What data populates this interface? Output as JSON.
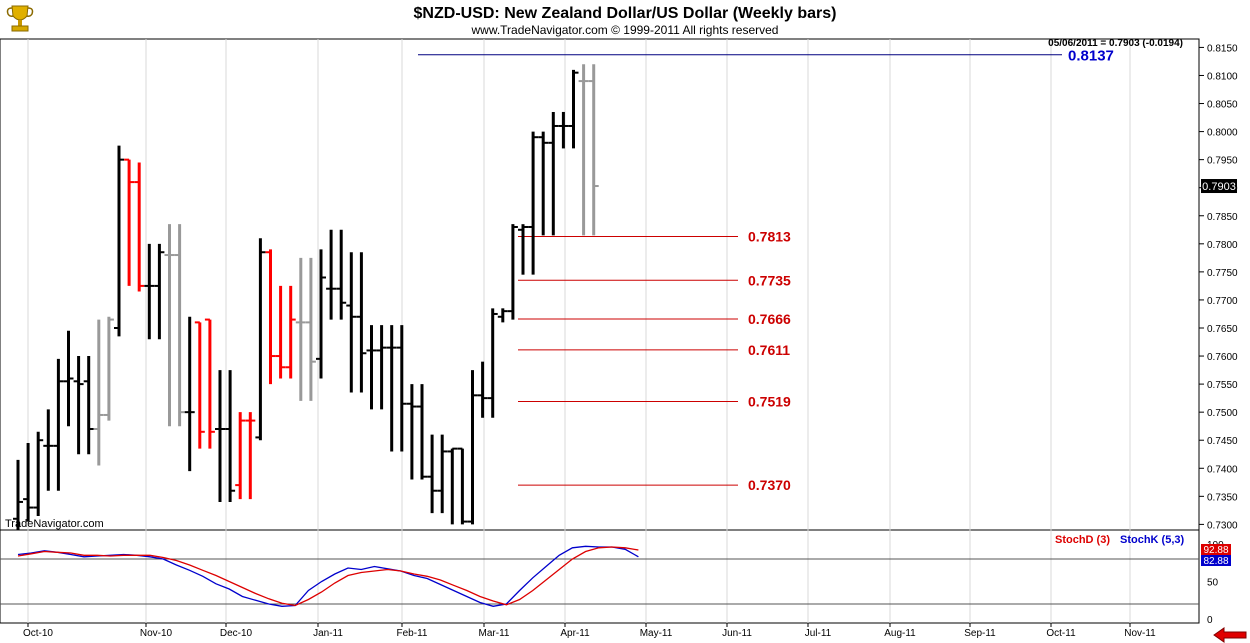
{
  "header": {
    "title": "$NZD-USD:  New Zealand Dollar/US Dollar  (Weekly bars)",
    "copyright": "www.TradeNavigator.com © 1999-2011 All rights reserved",
    "watermark": "TradeNavigator.com",
    "logo_icon": "trophy-icon",
    "nav_icon": "arrow-left-icon"
  },
  "colors": {
    "up_bar": "#000000",
    "down_bar": "#ff0000",
    "neutral_bar": "#999999",
    "fib_line": "#cc0000",
    "fib_label": "#cc0000",
    "target_line": "#000080",
    "target_label": "#0000cc",
    "stoch_d": "#dd0000",
    "stoch_k": "#0000cc",
    "grid": "#d8d8d8"
  },
  "chart_data": [
    {
      "type": "ohlc",
      "ylim": [
        0.729,
        0.8165
      ],
      "yticks": [
        "0.8150",
        "0.8100",
        "0.8050",
        "0.8000",
        "0.7950",
        "0.7900",
        "0.7850",
        "0.7800",
        "0.7750",
        "0.7700",
        "0.7650",
        "0.7600",
        "0.7550",
        "0.7500",
        "0.7450",
        "0.7400",
        "0.7350",
        "0.7300"
      ],
      "last_value": "0.7903",
      "last_label": "05/06/2011 = 0.7903 (-0.0194)",
      "target": {
        "label": "0.8137",
        "value": 0.8137
      },
      "fib_levels": [
        {
          "label": "0.7813",
          "value": 0.7813
        },
        {
          "label": "0.7735",
          "value": 0.7735
        },
        {
          "label": "0.7666",
          "value": 0.7666
        },
        {
          "label": "0.7611",
          "value": 0.7611
        },
        {
          "label": "0.7519",
          "value": 0.7519
        },
        {
          "label": "0.7370",
          "value": 0.737
        }
      ],
      "x_labels": [
        "Oct-10",
        "Nov-10",
        "Dec-10",
        "Jan-11",
        "Feb-11",
        "Mar-11",
        "Apr-11",
        "May-11",
        "Jun-11",
        "Jul-11",
        "Aug-11",
        "Sep-11",
        "Oct-11",
        "Nov-11"
      ],
      "bars": [
        {
          "w": 0,
          "o": 0.731,
          "h": 0.7415,
          "l": 0.729,
          "c": 0.734,
          "k": "up"
        },
        {
          "w": 1,
          "o": 0.7345,
          "h": 0.7445,
          "l": 0.7305,
          "c": 0.733,
          "k": "up"
        },
        {
          "w": 2,
          "o": 0.733,
          "h": 0.7465,
          "l": 0.7315,
          "c": 0.745,
          "k": "up"
        },
        {
          "w": 3,
          "o": 0.744,
          "h": 0.7505,
          "l": 0.736,
          "c": 0.744,
          "k": "up"
        },
        {
          "w": 4,
          "o": 0.744,
          "h": 0.7595,
          "l": 0.736,
          "c": 0.7555,
          "k": "up"
        },
        {
          "w": 5,
          "o": 0.7555,
          "h": 0.7645,
          "l": 0.7475,
          "c": 0.756,
          "k": "up"
        },
        {
          "w": 6,
          "o": 0.7555,
          "h": 0.76,
          "l": 0.7425,
          "c": 0.755,
          "k": "up"
        },
        {
          "w": 7,
          "o": 0.7555,
          "h": 0.76,
          "l": 0.7425,
          "c": 0.747,
          "k": "up"
        },
        {
          "w": 8,
          "o": 0.747,
          "h": 0.7665,
          "l": 0.7405,
          "c": 0.7495,
          "k": "neutral"
        },
        {
          "w": 9,
          "o": 0.7495,
          "h": 0.767,
          "l": 0.7485,
          "c": 0.7665,
          "k": "neutral"
        },
        {
          "w": 10,
          "o": 0.765,
          "h": 0.7975,
          "l": 0.7635,
          "c": 0.795,
          "k": "up"
        },
        {
          "w": 11,
          "o": 0.795,
          "h": 0.795,
          "l": 0.7725,
          "c": 0.791,
          "k": "down"
        },
        {
          "w": 12,
          "o": 0.791,
          "h": 0.7945,
          "l": 0.7715,
          "c": 0.7725,
          "k": "down"
        },
        {
          "w": 13,
          "o": 0.7725,
          "h": 0.78,
          "l": 0.763,
          "c": 0.7725,
          "k": "up"
        },
        {
          "w": 14,
          "o": 0.7725,
          "h": 0.78,
          "l": 0.763,
          "c": 0.7785,
          "k": "up"
        },
        {
          "w": 15,
          "o": 0.778,
          "h": 0.7835,
          "l": 0.7475,
          "c": 0.778,
          "k": "neutral"
        },
        {
          "w": 16,
          "o": 0.778,
          "h": 0.7835,
          "l": 0.7475,
          "c": 0.75,
          "k": "neutral"
        },
        {
          "w": 17,
          "o": 0.75,
          "h": 0.767,
          "l": 0.7395,
          "c": 0.75,
          "k": "up"
        },
        {
          "w": 18,
          "o": 0.766,
          "h": 0.766,
          "l": 0.7435,
          "c": 0.7465,
          "k": "down"
        },
        {
          "w": 19,
          "o": 0.7665,
          "h": 0.7665,
          "l": 0.7435,
          "c": 0.7465,
          "k": "down"
        },
        {
          "w": 20,
          "o": 0.747,
          "h": 0.7575,
          "l": 0.734,
          "c": 0.747,
          "k": "up"
        },
        {
          "w": 21,
          "o": 0.747,
          "h": 0.7575,
          "l": 0.734,
          "c": 0.736,
          "k": "up"
        },
        {
          "w": 22,
          "o": 0.737,
          "h": 0.75,
          "l": 0.7345,
          "c": 0.7485,
          "k": "down"
        },
        {
          "w": 23,
          "o": 0.7485,
          "h": 0.75,
          "l": 0.7345,
          "c": 0.7485,
          "k": "down"
        },
        {
          "w": 24,
          "o": 0.7455,
          "h": 0.781,
          "l": 0.745,
          "c": 0.7785,
          "k": "up"
        },
        {
          "w": 25,
          "o": 0.7785,
          "h": 0.779,
          "l": 0.755,
          "c": 0.76,
          "k": "down"
        },
        {
          "w": 26,
          "o": 0.76,
          "h": 0.7725,
          "l": 0.756,
          "c": 0.758,
          "k": "down"
        },
        {
          "w": 27,
          "o": 0.758,
          "h": 0.7725,
          "l": 0.756,
          "c": 0.7665,
          "k": "down"
        },
        {
          "w": 28,
          "o": 0.766,
          "h": 0.7775,
          "l": 0.752,
          "c": 0.766,
          "k": "neutral"
        },
        {
          "w": 29,
          "o": 0.766,
          "h": 0.7775,
          "l": 0.752,
          "c": 0.759,
          "k": "neutral"
        },
        {
          "w": 30,
          "o": 0.7595,
          "h": 0.779,
          "l": 0.756,
          "c": 0.774,
          "k": "up"
        },
        {
          "w": 31,
          "o": 0.772,
          "h": 0.7825,
          "l": 0.7665,
          "c": 0.772,
          "k": "up"
        },
        {
          "w": 32,
          "o": 0.772,
          "h": 0.7825,
          "l": 0.7665,
          "c": 0.7695,
          "k": "up"
        },
        {
          "w": 33,
          "o": 0.769,
          "h": 0.7785,
          "l": 0.7535,
          "c": 0.767,
          "k": "up"
        },
        {
          "w": 34,
          "o": 0.767,
          "h": 0.7785,
          "l": 0.7535,
          "c": 0.7605,
          "k": "up"
        },
        {
          "w": 35,
          "o": 0.761,
          "h": 0.7655,
          "l": 0.7505,
          "c": 0.761,
          "k": "up"
        },
        {
          "w": 36,
          "o": 0.761,
          "h": 0.7655,
          "l": 0.7505,
          "c": 0.7615,
          "k": "up"
        },
        {
          "w": 37,
          "o": 0.7615,
          "h": 0.7655,
          "l": 0.743,
          "c": 0.7615,
          "k": "up"
        },
        {
          "w": 38,
          "o": 0.7615,
          "h": 0.7655,
          "l": 0.743,
          "c": 0.7515,
          "k": "up"
        },
        {
          "w": 39,
          "o": 0.7515,
          "h": 0.755,
          "l": 0.738,
          "c": 0.751,
          "k": "up"
        },
        {
          "w": 40,
          "o": 0.751,
          "h": 0.755,
          "l": 0.738,
          "c": 0.7385,
          "k": "up"
        },
        {
          "w": 41,
          "o": 0.7385,
          "h": 0.746,
          "l": 0.732,
          "c": 0.736,
          "k": "up"
        },
        {
          "w": 42,
          "o": 0.736,
          "h": 0.746,
          "l": 0.732,
          "c": 0.743,
          "k": "up"
        },
        {
          "w": 43,
          "o": 0.743,
          "h": 0.7435,
          "l": 0.73,
          "c": 0.7435,
          "k": "up"
        },
        {
          "w": 44,
          "o": 0.7435,
          "h": 0.7435,
          "l": 0.73,
          "c": 0.7305,
          "k": "up"
        },
        {
          "w": 45,
          "o": 0.7305,
          "h": 0.7575,
          "l": 0.73,
          "c": 0.753,
          "k": "up"
        },
        {
          "w": 46,
          "o": 0.753,
          "h": 0.759,
          "l": 0.749,
          "c": 0.7525,
          "k": "up"
        },
        {
          "w": 47,
          "o": 0.7525,
          "h": 0.7685,
          "l": 0.749,
          "c": 0.7675,
          "k": "up"
        },
        {
          "w": 48,
          "o": 0.767,
          "h": 0.7685,
          "l": 0.766,
          "c": 0.768,
          "k": "up"
        },
        {
          "w": 49,
          "o": 0.768,
          "h": 0.7835,
          "l": 0.7665,
          "c": 0.783,
          "k": "up"
        },
        {
          "w": 50,
          "o": 0.7825,
          "h": 0.7835,
          "l": 0.7745,
          "c": 0.783,
          "k": "up"
        },
        {
          "w": 51,
          "o": 0.783,
          "h": 0.8,
          "l": 0.7745,
          "c": 0.799,
          "k": "up"
        },
        {
          "w": 52,
          "o": 0.799,
          "h": 0.8,
          "l": 0.7815,
          "c": 0.798,
          "k": "up"
        },
        {
          "w": 53,
          "o": 0.798,
          "h": 0.8035,
          "l": 0.7815,
          "c": 0.801,
          "k": "up"
        },
        {
          "w": 54,
          "o": 0.801,
          "h": 0.8035,
          "l": 0.797,
          "c": 0.801,
          "k": "up"
        },
        {
          "w": 55,
          "o": 0.801,
          "h": 0.811,
          "l": 0.797,
          "c": 0.8105,
          "k": "up"
        },
        {
          "w": 56,
          "o": 0.809,
          "h": 0.812,
          "l": 0.7815,
          "c": 0.809,
          "k": "neutral"
        },
        {
          "w": 57,
          "o": 0.809,
          "h": 0.812,
          "l": 0.7815,
          "c": 0.7903,
          "k": "neutral"
        }
      ]
    },
    {
      "type": "line",
      "indicator": "stochastic",
      "ylim": [
        0,
        100
      ],
      "yticks": [
        "100",
        "50",
        "0"
      ],
      "ref_lines": [
        80,
        20
      ],
      "d_label": "StochD (3)",
      "k_label": "StochK (5,3)",
      "d_value": "92.88",
      "k_value": "82.88",
      "series": [
        {
          "name": "StochK (5,3)",
          "values": [
            86,
            88,
            91,
            89,
            86,
            83,
            84,
            85,
            86,
            85,
            83,
            80,
            72,
            65,
            57,
            47,
            40,
            30,
            25,
            20,
            17,
            18,
            38,
            50,
            60,
            68,
            66,
            70,
            67,
            64,
            58,
            54,
            46,
            38,
            30,
            22,
            17,
            20,
            38,
            55,
            70,
            85,
            95,
            97,
            96,
            96,
            93,
            83
          ]
        },
        {
          "name": "StochD (3)",
          "values": [
            84,
            87,
            90,
            89,
            88,
            85,
            85,
            84,
            85,
            85,
            85,
            82,
            78,
            72,
            65,
            58,
            50,
            42,
            34,
            27,
            21,
            18,
            26,
            36,
            48,
            58,
            62,
            64,
            66,
            64,
            60,
            57,
            52,
            45,
            38,
            30,
            24,
            19,
            26,
            38,
            52,
            66,
            80,
            90,
            95,
            96,
            95,
            92
          ]
        }
      ]
    }
  ]
}
